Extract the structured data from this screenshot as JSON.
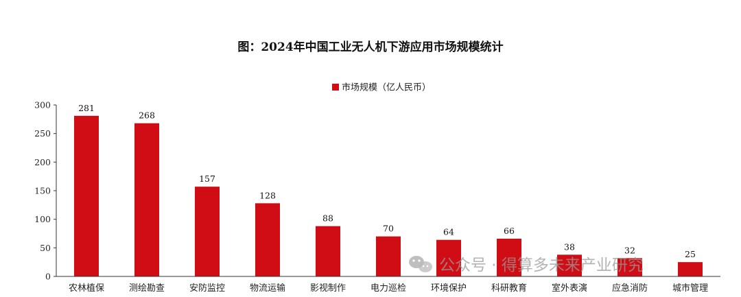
{
  "chart_data": {
    "type": "bar",
    "title": "图：2024年中国工业无人机下游应用市场规模统计",
    "categories": [
      "农林植保",
      "测绘勘查",
      "安防监控",
      "物流运输",
      "影视制作",
      "电力巡检",
      "环境保护",
      "科研教育",
      "室外表演",
      "应急消防",
      "城市管理"
    ],
    "series": [
      {
        "name": "市场规模（亿人民币）",
        "values": [
          281,
          268,
          157,
          128,
          88,
          70,
          64,
          66,
          38,
          32,
          25
        ]
      }
    ],
    "ylim": [
      0,
      300
    ],
    "yticks": [
      0,
      50,
      100,
      150,
      200,
      250,
      300
    ],
    "legend_position": "top-center",
    "grid": false,
    "bar_color": "#d00d14"
  },
  "watermark": {
    "text": "公众号 · 得算多未来产业研究",
    "icon": "wechat-icon"
  }
}
